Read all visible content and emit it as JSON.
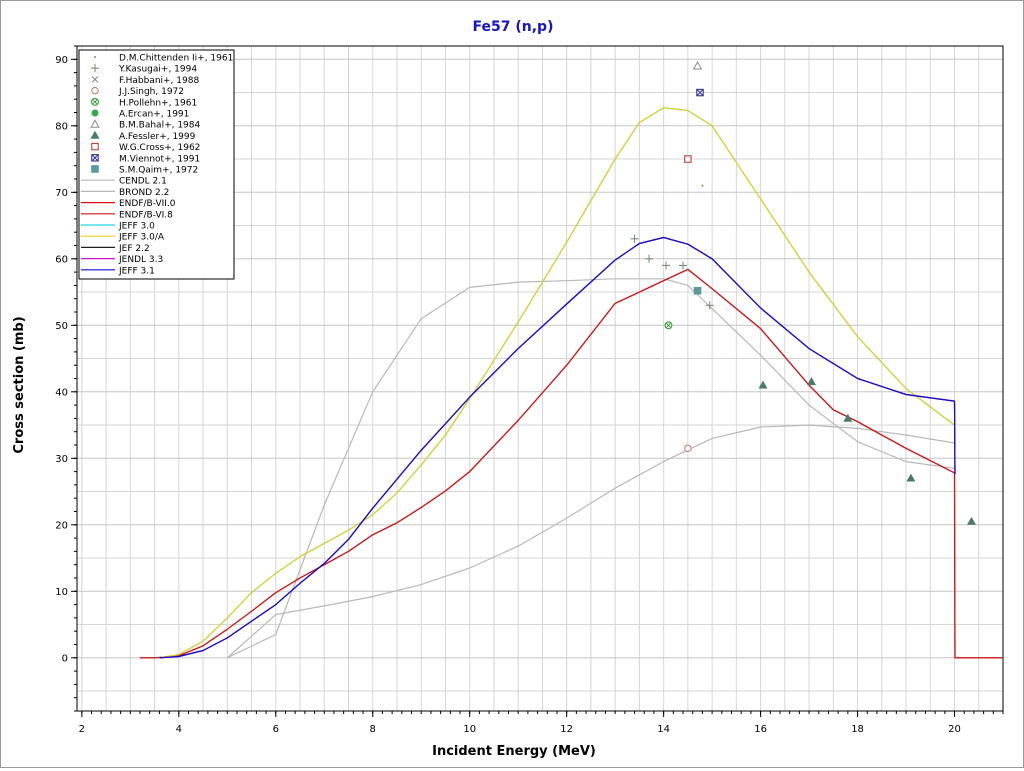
{
  "chart_data": {
    "type": "line",
    "title": "Fe57 (n,p)",
    "xlabel": "Incident Energy (MeV)",
    "ylabel": "Cross section (mb)",
    "xlim": [
      1.9,
      21
    ],
    "ylim": [
      -8,
      92
    ],
    "xticks": [
      2,
      4,
      6,
      8,
      10,
      12,
      14,
      16,
      18,
      20
    ],
    "yticks": [
      0,
      10,
      20,
      30,
      40,
      50,
      60,
      70,
      80,
      90
    ],
    "grid": true,
    "legend_position": "top-left",
    "title_color": "#1414c8",
    "experimental": [
      {
        "name": "D.M.Chittenden Ii+, 1961",
        "marker": "dot",
        "color": "#8a8a5a",
        "points": [
          [
            14.8,
            71
          ]
        ]
      },
      {
        "name": "Y.Kasugai+, 1994",
        "marker": "plus",
        "color": "#7f8f7f",
        "points": [
          [
            13.4,
            63
          ],
          [
            13.7,
            60
          ],
          [
            14.05,
            59
          ],
          [
            14.4,
            59
          ],
          [
            14.95,
            53
          ]
        ]
      },
      {
        "name": "F.Habbani+, 1988",
        "marker": "x",
        "color": "#8c8c8c",
        "points": []
      },
      {
        "name": "J.J.Singh, 1972",
        "marker": "circle",
        "color": "#d08070",
        "points": [
          [
            14.5,
            31.5
          ]
        ]
      },
      {
        "name": "H.Pollehn+, 1961",
        "marker": "circle-x",
        "color": "#3a9a3a",
        "points": [
          [
            14.1,
            50
          ]
        ]
      },
      {
        "name": "A.Ercan+, 1991",
        "marker": "filled-circle",
        "color": "#2eaa50",
        "points": []
      },
      {
        "name": "B.M.Bahal+, 1984",
        "marker": "triangle",
        "color": "#8c8c8c",
        "points": [
          [
            14.7,
            89
          ]
        ]
      },
      {
        "name": "A.Fessler+, 1999",
        "marker": "filled-triangle",
        "color": "#4a7a6a",
        "points": [
          [
            16.05,
            41
          ],
          [
            17.05,
            41.5
          ],
          [
            17.8,
            36
          ],
          [
            19.1,
            27
          ],
          [
            20.35,
            20.5
          ]
        ]
      },
      {
        "name": "W.G.Cross+, 1962",
        "marker": "square",
        "color": "#c04030",
        "points": [
          [
            14.5,
            75
          ]
        ]
      },
      {
        "name": "M.Viennot+, 1991",
        "marker": "square-x",
        "color": "#3030a0",
        "points": [
          [
            14.75,
            85
          ]
        ]
      },
      {
        "name": "S.M.Qaim+, 1972",
        "marker": "filled-square",
        "color": "#5a9a9a",
        "points": [
          [
            14.7,
            55.2
          ]
        ]
      }
    ],
    "series": [
      {
        "name": "CENDL 2.1",
        "color": "#b8b8b8",
        "x": [
          5,
          6,
          7,
          8,
          9,
          10,
          11,
          12,
          13,
          14,
          15,
          16,
          17,
          18,
          19,
          20
        ],
        "y": [
          0,
          6.5,
          7.8,
          9.2,
          11,
          13.5,
          16.8,
          21,
          25.5,
          29.5,
          33,
          34.7,
          35,
          34.5,
          33.5,
          32.3
        ]
      },
      {
        "name": "BROND 2.2",
        "color": "#b8b8b8",
        "x": [
          5,
          6,
          7,
          8,
          9,
          10,
          11,
          12,
          13,
          14,
          14.5,
          15,
          16,
          17,
          18,
          19,
          20
        ],
        "y": [
          0,
          3.5,
          23,
          40,
          51,
          55.7,
          56.5,
          56.7,
          57,
          57,
          56,
          52.5,
          45.5,
          38,
          32.5,
          29.5,
          28.5
        ]
      },
      {
        "name": "ENDF/B-VII.0",
        "color": "#e01010",
        "x": [
          3.2,
          3.5,
          4,
          4.5,
          5,
          5.5,
          6,
          6.5,
          7,
          7.5,
          8,
          8.5,
          9,
          9.5,
          10,
          11,
          12,
          13,
          13.5,
          14,
          14.5,
          15,
          16,
          17,
          17.5,
          18,
          19,
          20,
          20.01,
          21
        ],
        "y": [
          0,
          0,
          0.3,
          1.8,
          4.3,
          7,
          9.8,
          12,
          14,
          16,
          18.5,
          20.3,
          22.6,
          25.1,
          28,
          35.7,
          44,
          53.3,
          55,
          56.7,
          58.4,
          55.5,
          49.5,
          41,
          37.3,
          35.5,
          31.5,
          27.8,
          0,
          0
        ]
      },
      {
        "name": "ENDF/B-VI.8",
        "color": "#c81818",
        "x": [
          3.2,
          3.5,
          4,
          4.5,
          5,
          5.5,
          6,
          6.5,
          7,
          7.5,
          8,
          8.5,
          9,
          9.5,
          10,
          11,
          12,
          13,
          13.5,
          14,
          14.5,
          15,
          16,
          17,
          17.5,
          18,
          19,
          20,
          20.01,
          21
        ],
        "y": [
          0,
          0,
          0.3,
          1.8,
          4.3,
          7,
          9.8,
          12,
          14,
          16,
          18.5,
          20.3,
          22.6,
          25.1,
          28,
          35.7,
          44,
          53.3,
          55,
          56.7,
          58.4,
          55.5,
          49.5,
          41,
          37.3,
          35.5,
          31.5,
          27.8,
          0,
          0
        ]
      },
      {
        "name": "JEFF 3.0",
        "color": "#20d8e8",
        "x": [
          3.6,
          4,
          4.5,
          5,
          5.5,
          6,
          6.5,
          7,
          7.5,
          8,
          8.5,
          9,
          9.5,
          10,
          11,
          12,
          13,
          13.5,
          14,
          14.5,
          15,
          16,
          17,
          18,
          19,
          20
        ],
        "y": [
          0,
          0.5,
          2.5,
          6,
          9.8,
          12.7,
          15.2,
          17.2,
          19.2,
          21.5,
          24.8,
          29,
          33.5,
          39,
          50.5,
          62.5,
          75,
          80.5,
          82.7,
          82.3,
          80,
          69,
          58,
          48.3,
          40.5,
          35
        ]
      },
      {
        "name": "JEFF 3.0/A",
        "color": "#e8d020",
        "x": [
          3.6,
          4,
          4.5,
          5,
          5.5,
          6,
          6.5,
          7,
          7.5,
          8,
          8.5,
          9,
          9.5,
          10,
          11,
          12,
          13,
          13.5,
          14,
          14.5,
          15,
          16,
          17,
          18,
          19,
          20
        ],
        "y": [
          0,
          0.5,
          2.5,
          6,
          9.8,
          12.7,
          15.2,
          17.2,
          19.2,
          21.5,
          24.8,
          29,
          33.5,
          39,
          50.5,
          62.5,
          75,
          80.5,
          82.7,
          82.3,
          80,
          69,
          58,
          48.3,
          40.5,
          35
        ]
      },
      {
        "name": "JEF 2.2",
        "color": "#202020",
        "x": [
          3.6,
          4,
          4.5,
          5,
          5.5,
          6,
          6.5,
          7,
          7.5,
          8,
          9,
          10,
          11,
          12,
          13,
          13.5,
          14,
          14.5,
          15,
          16,
          17,
          18,
          19,
          20,
          20.01
        ],
        "y": [
          0,
          0.2,
          1.1,
          3,
          5.5,
          8,
          11.2,
          14.2,
          17.8,
          22.5,
          31.2,
          39.2,
          46.5,
          53.2,
          59.8,
          62.3,
          63.2,
          62.2,
          60,
          52.6,
          46.5,
          42,
          39.6,
          38.6,
          27.6
        ]
      },
      {
        "name": "JENDL 3.3",
        "color": "#d010d0",
        "x": [
          3.6,
          4,
          4.5,
          5,
          5.5,
          6,
          6.5,
          7,
          7.5,
          8,
          9,
          10,
          11,
          12,
          13,
          13.5,
          14,
          14.5,
          15,
          16,
          17,
          18,
          19,
          20,
          20.01
        ],
        "y": [
          0,
          0.2,
          1.1,
          3,
          5.5,
          8,
          11.2,
          14.2,
          17.8,
          22.5,
          31.2,
          39.2,
          46.5,
          53.2,
          59.8,
          62.3,
          63.2,
          62.2,
          60,
          52.6,
          46.5,
          42,
          39.6,
          38.6,
          27.6
        ]
      },
      {
        "name": "JEFF 3.1",
        "color": "#1010d0",
        "x": [
          3.6,
          4,
          4.5,
          5,
          5.5,
          6,
          6.5,
          7,
          7.5,
          8,
          9,
          10,
          11,
          12,
          13,
          13.5,
          14,
          14.5,
          15,
          16,
          17,
          18,
          19,
          20,
          20.01
        ],
        "y": [
          0,
          0.2,
          1.1,
          3,
          5.5,
          8,
          11.2,
          14.2,
          17.8,
          22.5,
          31.2,
          39.2,
          46.5,
          53.2,
          59.8,
          62.3,
          63.2,
          62.2,
          60,
          52.6,
          46.5,
          42,
          39.6,
          38.6,
          27.6
        ]
      }
    ]
  }
}
